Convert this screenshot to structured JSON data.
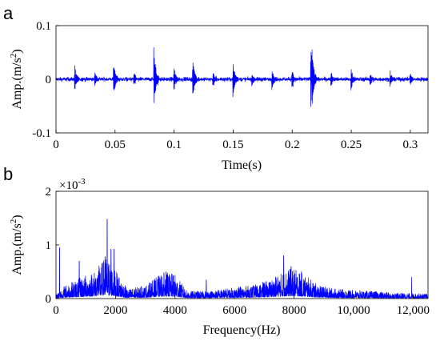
{
  "chart_data": [
    {
      "panel": "a",
      "type": "line",
      "xlabel": "Time(s)",
      "ylabel": "Amp.(m/s",
      "ylabel_sup": "2",
      "ylabel_close": ")",
      "xlim": [
        0,
        0.315
      ],
      "ylim": [
        -0.1,
        0.1
      ],
      "xticks": [
        0,
        0.05,
        0.1,
        0.15,
        0.2,
        0.25,
        0.3
      ],
      "xtick_labels": [
        "0",
        "0.05",
        "0.1",
        "0.15",
        "0.2",
        "0.25",
        "0.3"
      ],
      "yticks": [
        -0.1,
        0,
        0.1
      ],
      "ytick_labels": [
        "-0.1",
        "0",
        "0.1"
      ],
      "color": "#0000ff",
      "baseline_noise": 0.006,
      "impulses": [
        {
          "t": 0.016,
          "amp": 0.024
        },
        {
          "t": 0.033,
          "amp": 0.012
        },
        {
          "t": 0.049,
          "amp": 0.032
        },
        {
          "t": 0.066,
          "amp": 0.014
        },
        {
          "t": 0.083,
          "amp": -0.065
        },
        {
          "t": 0.1,
          "amp": 0.022
        },
        {
          "t": 0.116,
          "amp": 0.041
        },
        {
          "t": 0.133,
          "amp": 0.016
        },
        {
          "t": 0.15,
          "amp": 0.038
        },
        {
          "t": 0.166,
          "amp": 0.013
        },
        {
          "t": 0.183,
          "amp": 0.02
        },
        {
          "t": 0.2,
          "amp": 0.018
        },
        {
          "t": 0.216,
          "amp": 0.057
        },
        {
          "t": 0.217,
          "amp": -0.066
        },
        {
          "t": 0.233,
          "amp": 0.015
        },
        {
          "t": 0.25,
          "amp": 0.023
        },
        {
          "t": 0.266,
          "amp": 0.013
        },
        {
          "t": 0.283,
          "amp": 0.015
        },
        {
          "t": 0.3,
          "amp": 0.012
        }
      ]
    },
    {
      "panel": "b",
      "type": "line",
      "xlabel": "Frequency(Hz)",
      "ylabel": "Amp.(m/s",
      "ylabel_sup": "2",
      "ylabel_close": ")",
      "y_scale_label": "×10",
      "y_scale_exp": "-3",
      "xlim": [
        0,
        12500
      ],
      "ylim": [
        0,
        0.002
      ],
      "xticks": [
        0,
        2000,
        4000,
        6000,
        8000,
        10000,
        12000
      ],
      "xtick_labels": [
        "0",
        "2000",
        "4000",
        "6000",
        "8000",
        "10,000",
        "12,000"
      ],
      "yticks": [
        0,
        0.001,
        0.002
      ],
      "ytick_labels": [
        "0",
        "1",
        "2"
      ],
      "color": "#0000ff",
      "spectrum_envelope": [
        {
          "f": 0,
          "a": 5e-05
        },
        {
          "f": 300,
          "a": 0.00014
        },
        {
          "f": 800,
          "a": 0.00022
        },
        {
          "f": 1300,
          "a": 0.0003
        },
        {
          "f": 1700,
          "a": 0.00045
        },
        {
          "f": 2000,
          "a": 0.0003
        },
        {
          "f": 2400,
          "a": 0.0001
        },
        {
          "f": 3000,
          "a": 0.00014
        },
        {
          "f": 3600,
          "a": 0.00028
        },
        {
          "f": 4000,
          "a": 0.00026
        },
        {
          "f": 4400,
          "a": 8e-05
        },
        {
          "f": 5000,
          "a": 8e-05
        },
        {
          "f": 5600,
          "a": 0.0001
        },
        {
          "f": 6000,
          "a": 0.00012
        },
        {
          "f": 6600,
          "a": 0.00014
        },
        {
          "f": 7200,
          "a": 0.0002
        },
        {
          "f": 7800,
          "a": 0.00032
        },
        {
          "f": 8200,
          "a": 0.0003
        },
        {
          "f": 8800,
          "a": 0.00014
        },
        {
          "f": 9500,
          "a": 0.0001
        },
        {
          "f": 10500,
          "a": 8e-05
        },
        {
          "f": 11500,
          "a": 6e-05
        },
        {
          "f": 12500,
          "a": 5e-05
        }
      ],
      "peaks": [
        {
          "f": 1720,
          "a": 0.00148
        },
        {
          "f": 1850,
          "a": 0.00092
        },
        {
          "f": 1650,
          "a": 0.00078
        },
        {
          "f": 1950,
          "a": 0.00092
        },
        {
          "f": 780,
          "a": 0.0007
        },
        {
          "f": 120,
          "a": 0.00095
        },
        {
          "f": 3700,
          "a": 0.0005
        },
        {
          "f": 5050,
          "a": 0.00035
        },
        {
          "f": 7650,
          "a": 0.0008
        },
        {
          "f": 7900,
          "a": 0.0006
        },
        {
          "f": 11950,
          "a": 0.0004
        }
      ]
    }
  ],
  "panel_a_letter": "a",
  "panel_b_letter": "b"
}
